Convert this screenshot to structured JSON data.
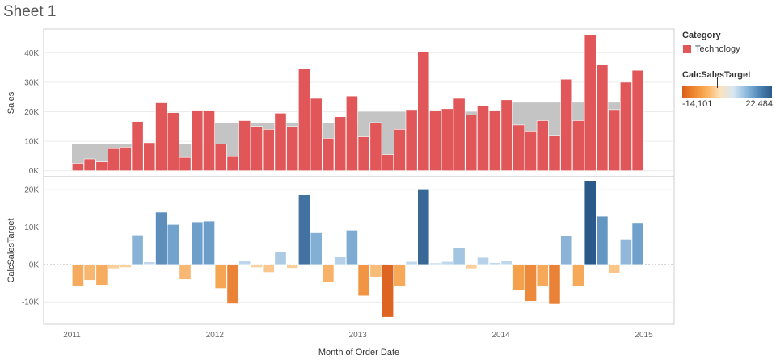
{
  "sheet": {
    "title": "Sheet 1"
  },
  "legend": {
    "category_title": "Category",
    "category_item": "Technology",
    "category_color": "#e15759",
    "color_title": "CalcSalesTarget",
    "color_min_label": "-14,101",
    "color_max_label": "22,484"
  },
  "colors": {
    "sales_bar": "#e15759",
    "target_band": "#c4c4c4",
    "negative_strong": "#de6423",
    "negative_light": "#fbd8a8",
    "positive_light": "#c6dcee",
    "positive_strong": "#2b5a8a"
  },
  "chart_data": [
    {
      "type": "bar",
      "title": "",
      "xlabel": "Month of Order Date",
      "ylabel": "Sales",
      "ylim": [
        -2000,
        48000
      ],
      "yticks": [
        0,
        10000,
        20000,
        30000,
        40000
      ],
      "ytick_labels": [
        "0K",
        "10K",
        "20K",
        "30K",
        "40K"
      ],
      "x_tick_labels": [
        "2011",
        "2012",
        "2013",
        "2014",
        "2015"
      ],
      "start_month": "2011-01",
      "months": 48,
      "series": [
        {
          "name": "Sales",
          "values": [
            2500,
            4000,
            3000,
            7500,
            8000,
            16700,
            9500,
            23000,
            19700,
            4500,
            20500,
            20500,
            9000,
            4800,
            17000,
            15000,
            14000,
            19500,
            15000,
            34500,
            24500,
            11000,
            18300,
            25300,
            11500,
            16300,
            5500,
            14000,
            20700,
            40200,
            20500,
            21000,
            24500,
            18900,
            22000,
            20500,
            24000,
            15500,
            13200,
            17000,
            12000,
            31000,
            17000,
            46000,
            36000,
            20700,
            30000,
            34000
          ]
        },
        {
          "name": "Sales Target",
          "values": [
            9000,
            9000,
            9000,
            9000,
            9000,
            9000,
            9000,
            9000,
            9000,
            9000,
            9000,
            9000,
            16300,
            16300,
            16300,
            16300,
            16300,
            16300,
            16300,
            16300,
            16300,
            16300,
            16300,
            16300,
            20000,
            20000,
            20000,
            20000,
            20000,
            20000,
            20000,
            20000,
            20000,
            20000,
            20000,
            20000,
            23100,
            23100,
            23100,
            23100,
            23100,
            23100,
            23100,
            23100,
            23100,
            23100,
            23100,
            23100
          ]
        }
      ]
    },
    {
      "type": "bar",
      "title": "",
      "xlabel": "Month of Order Date",
      "ylabel": "CalcSalesTarget",
      "ylim": [
        -16000,
        23500
      ],
      "yticks": [
        -10000,
        0,
        10000,
        20000
      ],
      "ytick_labels": [
        "-10K",
        "0K",
        "10K",
        "20K"
      ],
      "color_range": [
        -14101,
        22484
      ],
      "series": [
        {
          "name": "CalcSalesTarget",
          "values": [
            -5800,
            -4200,
            -5500,
            -1100,
            -800,
            7900,
            700,
            14000,
            10700,
            -4000,
            11400,
            11600,
            -6400,
            -10500,
            1100,
            -800,
            -2100,
            3300,
            -1000,
            18600,
            8500,
            -4800,
            2200,
            9200,
            -8400,
            -3500,
            -14100,
            -5900,
            800,
            20200,
            400,
            800,
            4400,
            -1100,
            1900,
            500,
            1000,
            -7000,
            -9800,
            -5900,
            -10600,
            7700,
            -5900,
            22484,
            12900,
            -2400,
            6800,
            11000
          ]
        }
      ]
    }
  ]
}
